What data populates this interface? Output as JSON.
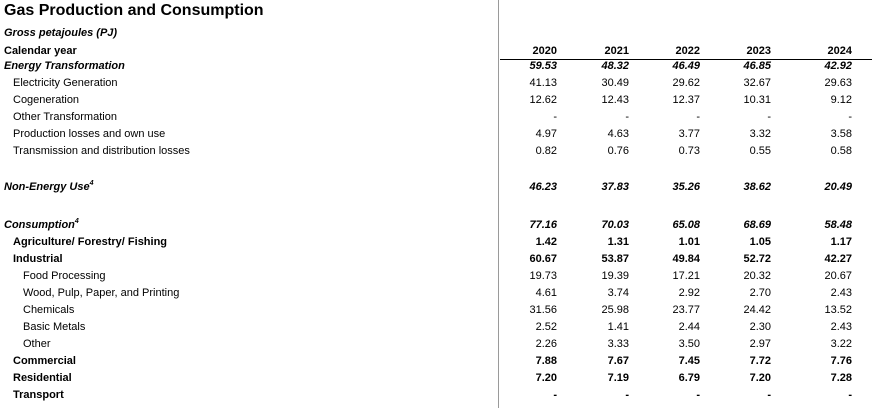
{
  "title": "Gas Production and Consumption",
  "subtitle": "Gross petajoules (PJ)",
  "header": {
    "label": "Calendar year",
    "years": [
      "2020",
      "2021",
      "2022",
      "2023",
      "2024"
    ]
  },
  "sections": {
    "energy_transformation": {
      "label": "Energy Transformation",
      "values": [
        "59.53",
        "48.32",
        "46.49",
        "46.85",
        "42.92"
      ],
      "rows": [
        {
          "label": "Electricity Generation",
          "values": [
            "41.13",
            "30.49",
            "29.62",
            "32.67",
            "29.63"
          ]
        },
        {
          "label": "Cogeneration",
          "values": [
            "12.62",
            "12.43",
            "12.37",
            "10.31",
            "9.12"
          ]
        },
        {
          "label": "Other Transformation",
          "values": [
            "-",
            "-",
            "-",
            "-",
            "-"
          ]
        },
        {
          "label": "Production losses and own use",
          "values": [
            "4.97",
            "4.63",
            "3.77",
            "3.32",
            "3.58"
          ]
        },
        {
          "label": "Transmission and distribution losses",
          "values": [
            "0.82",
            "0.76",
            "0.73",
            "0.55",
            "0.58"
          ]
        }
      ]
    },
    "non_energy_use": {
      "label": "Non-Energy Use",
      "note": "4",
      "values": [
        "46.23",
        "37.83",
        "35.26",
        "38.62",
        "20.49"
      ]
    },
    "consumption": {
      "label": "Consumption",
      "note": "4",
      "values": [
        "77.16",
        "70.03",
        "65.08",
        "68.69",
        "58.48"
      ],
      "agriculture": {
        "label": "Agriculture/ Forestry/ Fishing",
        "values": [
          "1.42",
          "1.31",
          "1.01",
          "1.05",
          "1.17"
        ]
      },
      "industrial": {
        "label": "Industrial",
        "values": [
          "60.67",
          "53.87",
          "49.84",
          "52.72",
          "42.27"
        ],
        "rows": [
          {
            "label": "Food Processing",
            "values": [
              "19.73",
              "19.39",
              "17.21",
              "20.32",
              "20.67"
            ]
          },
          {
            "label": "Wood, Pulp, Paper, and Printing",
            "values": [
              "4.61",
              "3.74",
              "2.92",
              "2.70",
              "2.43"
            ]
          },
          {
            "label": "Chemicals",
            "values": [
              "31.56",
              "25.98",
              "23.77",
              "24.42",
              "13.52"
            ]
          },
          {
            "label": "Basic Metals",
            "values": [
              "2.52",
              "1.41",
              "2.44",
              "2.30",
              "2.43"
            ]
          },
          {
            "label": "Other",
            "values": [
              "2.26",
              "3.33",
              "3.50",
              "2.97",
              "3.22"
            ]
          }
        ]
      },
      "commercial": {
        "label": "Commercial",
        "values": [
          "7.88",
          "7.67",
          "7.45",
          "7.72",
          "7.76"
        ]
      },
      "residential": {
        "label": "Residential",
        "values": [
          "7.20",
          "7.19",
          "6.79",
          "7.20",
          "7.28"
        ]
      },
      "transport": {
        "label": "Transport",
        "values": [
          "-",
          "-",
          "-",
          "-",
          "-"
        ]
      }
    }
  }
}
